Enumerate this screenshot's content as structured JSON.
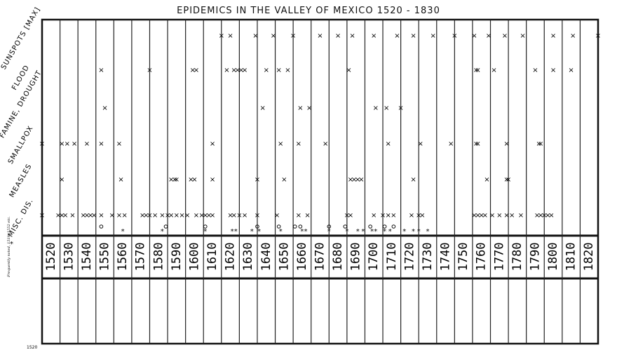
{
  "chart_data": {
    "type": "scatter",
    "title": "EPIDEMICS IN THE VALLEY OF MEXICO   1520 - 1830",
    "x_ticks": [
      "1520",
      "1530",
      "1540",
      "1550",
      "1560",
      "1570",
      "1580",
      "1590",
      "1600",
      "1610",
      "1620",
      "1630",
      "1640",
      "1650",
      "1660",
      "1670",
      "1680",
      "1690",
      "1700",
      "1710",
      "1720",
      "1730",
      "1740",
      "1750",
      "1760",
      "1770",
      "1780",
      "1790",
      "1800",
      "1810",
      "1820"
    ],
    "xlim": [
      1520,
      1830
    ],
    "grid": true,
    "rows": [
      {
        "label": "SUNSPOTS [MAX]"
      },
      {
        "label": "FLOOD"
      },
      {
        "label": "FAMINE, DROUGHT"
      },
      {
        "label": "SMALLPOX"
      },
      {
        "label": "MEASLES"
      },
      {
        "label": "MISC. DIS."
      }
    ],
    "footnote_mark": "*",
    "footnote": "Frequently noted, 1519, 1552 etc.",
    "bottom_year": "1520",
    "marks": {
      "SUNSPOTS [MAX]": [
        1620,
        1625,
        1639,
        1649,
        1660,
        1675,
        1685,
        1693,
        1705,
        1718,
        1727,
        1738,
        1750,
        1761,
        1769,
        1778,
        1788,
        1805,
        1816,
        1830
      ],
      "FLOOD": [
        1553,
        1580,
        1604,
        1606,
        1623,
        1627,
        1629,
        1631,
        1633,
        1645,
        1652,
        1657,
        1691,
        1762,
        1763,
        1772,
        1795,
        1805,
        1815
      ],
      "FAMINE, DROUGHT": [
        1555,
        1643,
        1664,
        1669,
        1706,
        1712,
        1720
      ],
      "SMALLPOX": [
        1520,
        1531,
        1534,
        1538,
        1545,
        1553,
        1563,
        1615,
        1653,
        1663,
        1678,
        1713,
        1731,
        1748,
        1762,
        1763,
        1779,
        1797,
        1798
      ],
      "MEASLES": [
        1531,
        1564,
        1592,
        1594,
        1595,
        1603,
        1605,
        1615,
        1640,
        1655,
        1692,
        1694,
        1696,
        1698,
        1727,
        1768,
        1779,
        1780
      ],
      "MISC. DIS.": [
        1520,
        1529,
        1531,
        1533,
        1537,
        1543,
        1545,
        1547,
        1549,
        1553,
        1559,
        1563,
        1566,
        1576,
        1578,
        1580,
        1583,
        1587,
        1590,
        1592,
        1595,
        1598,
        1601,
        1606,
        1609,
        1611,
        1613,
        1615,
        1625,
        1627,
        1630,
        1633,
        1640,
        1651,
        1663,
        1668,
        1690,
        1692,
        1705,
        1710,
        1713,
        1716,
        1726,
        1730,
        1732,
        1761,
        1763,
        1765,
        1767,
        1771,
        1775,
        1779,
        1782,
        1787,
        1796,
        1798,
        1800,
        1802,
        1804
      ]
    },
    "asterisks": [
      1565,
      1587,
      1611,
      1626,
      1628,
      1637,
      1641,
      1653,
      1665,
      1667,
      1680,
      1690,
      1696,
      1699,
      1704,
      1706,
      1711,
      1714,
      1722,
      1727,
      1730,
      1735
    ],
    "drought_symbols": [
      1553,
      1589,
      1611,
      1640,
      1652,
      1661,
      1664,
      1680,
      1689,
      1703,
      1711,
      1716
    ]
  }
}
